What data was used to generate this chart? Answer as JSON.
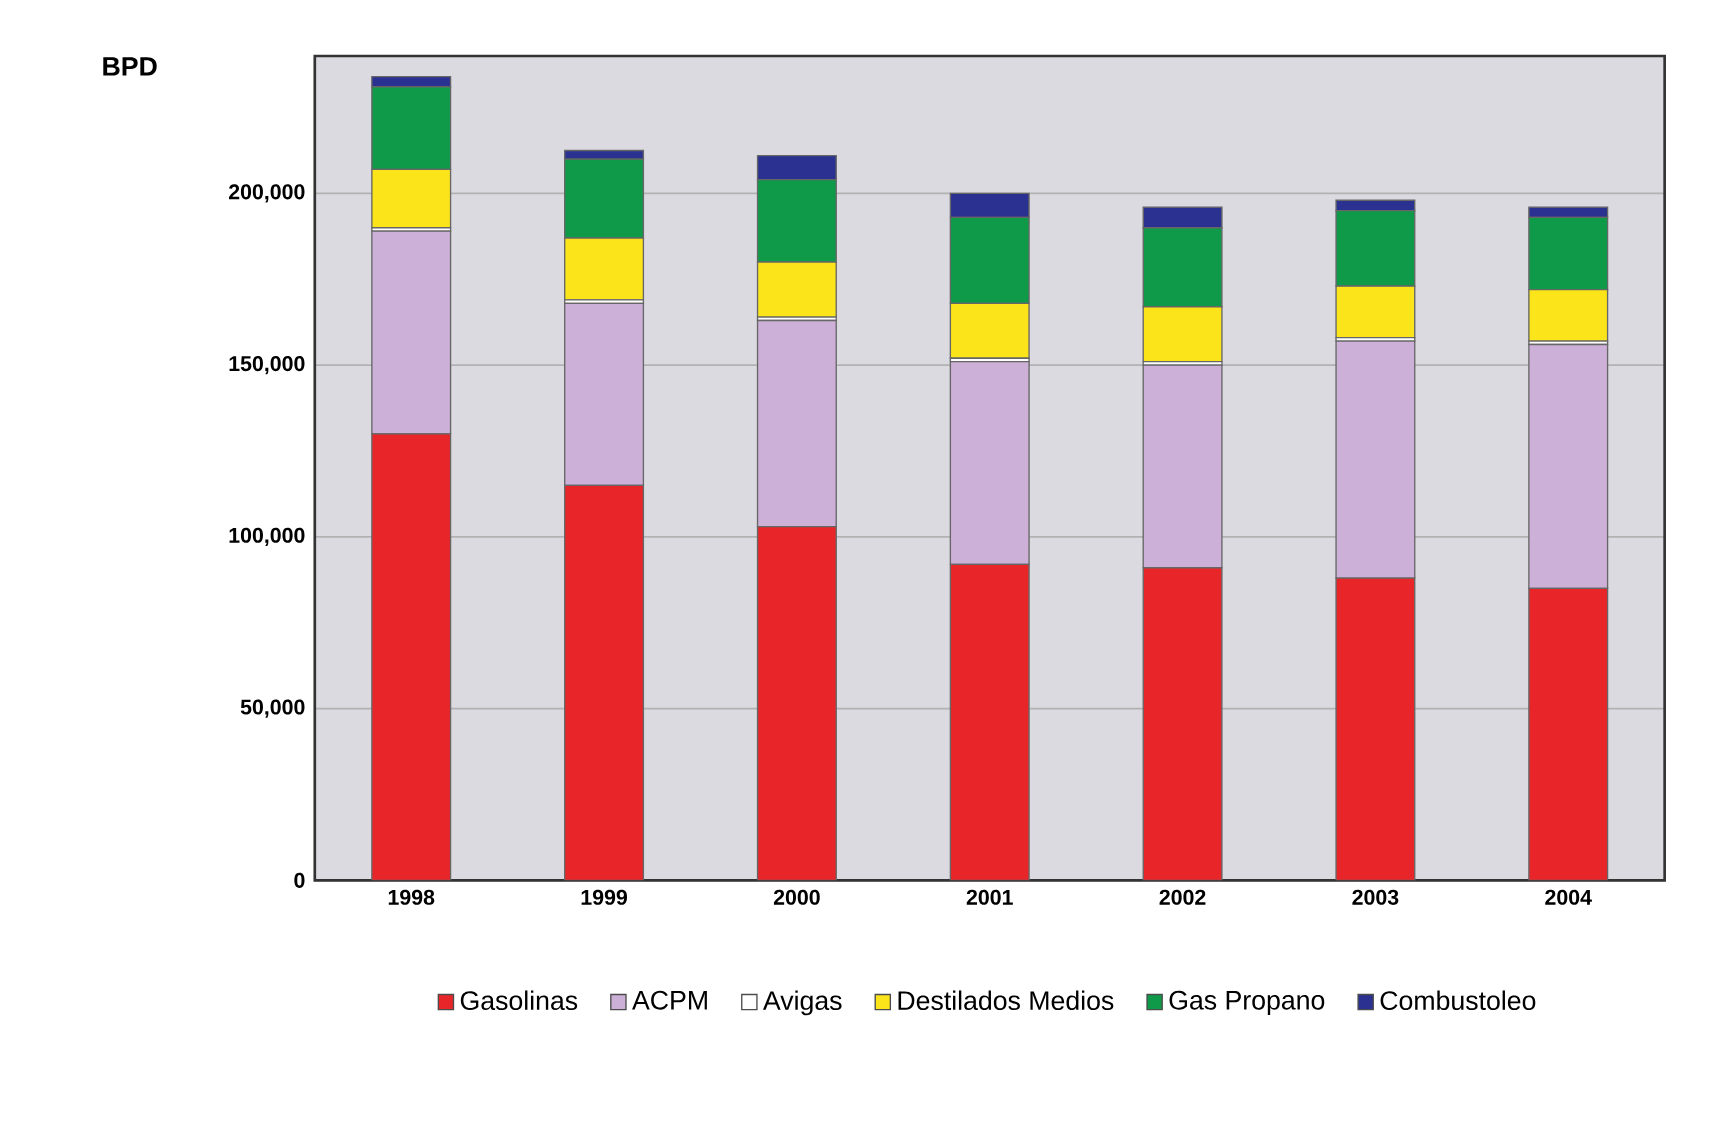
{
  "chart_data": {
    "type": "bar",
    "stacked": true,
    "ylabel": "BPD",
    "categories": [
      "1998",
      "1999",
      "2000",
      "2001",
      "2002",
      "2003",
      "2004"
    ],
    "series": [
      {
        "name": "Gasolinas",
        "color": "#e8262a",
        "values": [
          130000,
          115000,
          103000,
          92000,
          91000,
          88000,
          85000
        ]
      },
      {
        "name": "ACPM",
        "color": "#cdb0d8",
        "values": [
          59000,
          53000,
          60000,
          59000,
          59000,
          69000,
          71000
        ]
      },
      {
        "name": "Avigas",
        "color": "#ffffff",
        "values": [
          1000,
          1000,
          1000,
          1000,
          1000,
          1000,
          1000
        ]
      },
      {
        "name": "Destilados Medios",
        "color": "#fbe419",
        "values": [
          17000,
          18000,
          16000,
          16000,
          16000,
          15000,
          15000
        ]
      },
      {
        "name": "Gas Propano",
        "color": "#0f9a4a",
        "values": [
          24000,
          23000,
          24000,
          25000,
          23000,
          22000,
          21000
        ]
      },
      {
        "name": "Combustoleo",
        "color": "#2b3190",
        "values": [
          3000,
          2500,
          7000,
          7000,
          6000,
          3000,
          3000
        ]
      }
    ],
    "ylim": [
      0,
      240000
    ],
    "yticks": [
      0,
      {
        "value": 50000,
        "label": "50,000"
      },
      {
        "value": 100000,
        "label": "100,000"
      },
      {
        "value": 150000,
        "label": "150,000"
      },
      {
        "value": 200000,
        "label": "200,000"
      }
    ],
    "grid": "y",
    "legend": "bottom"
  }
}
